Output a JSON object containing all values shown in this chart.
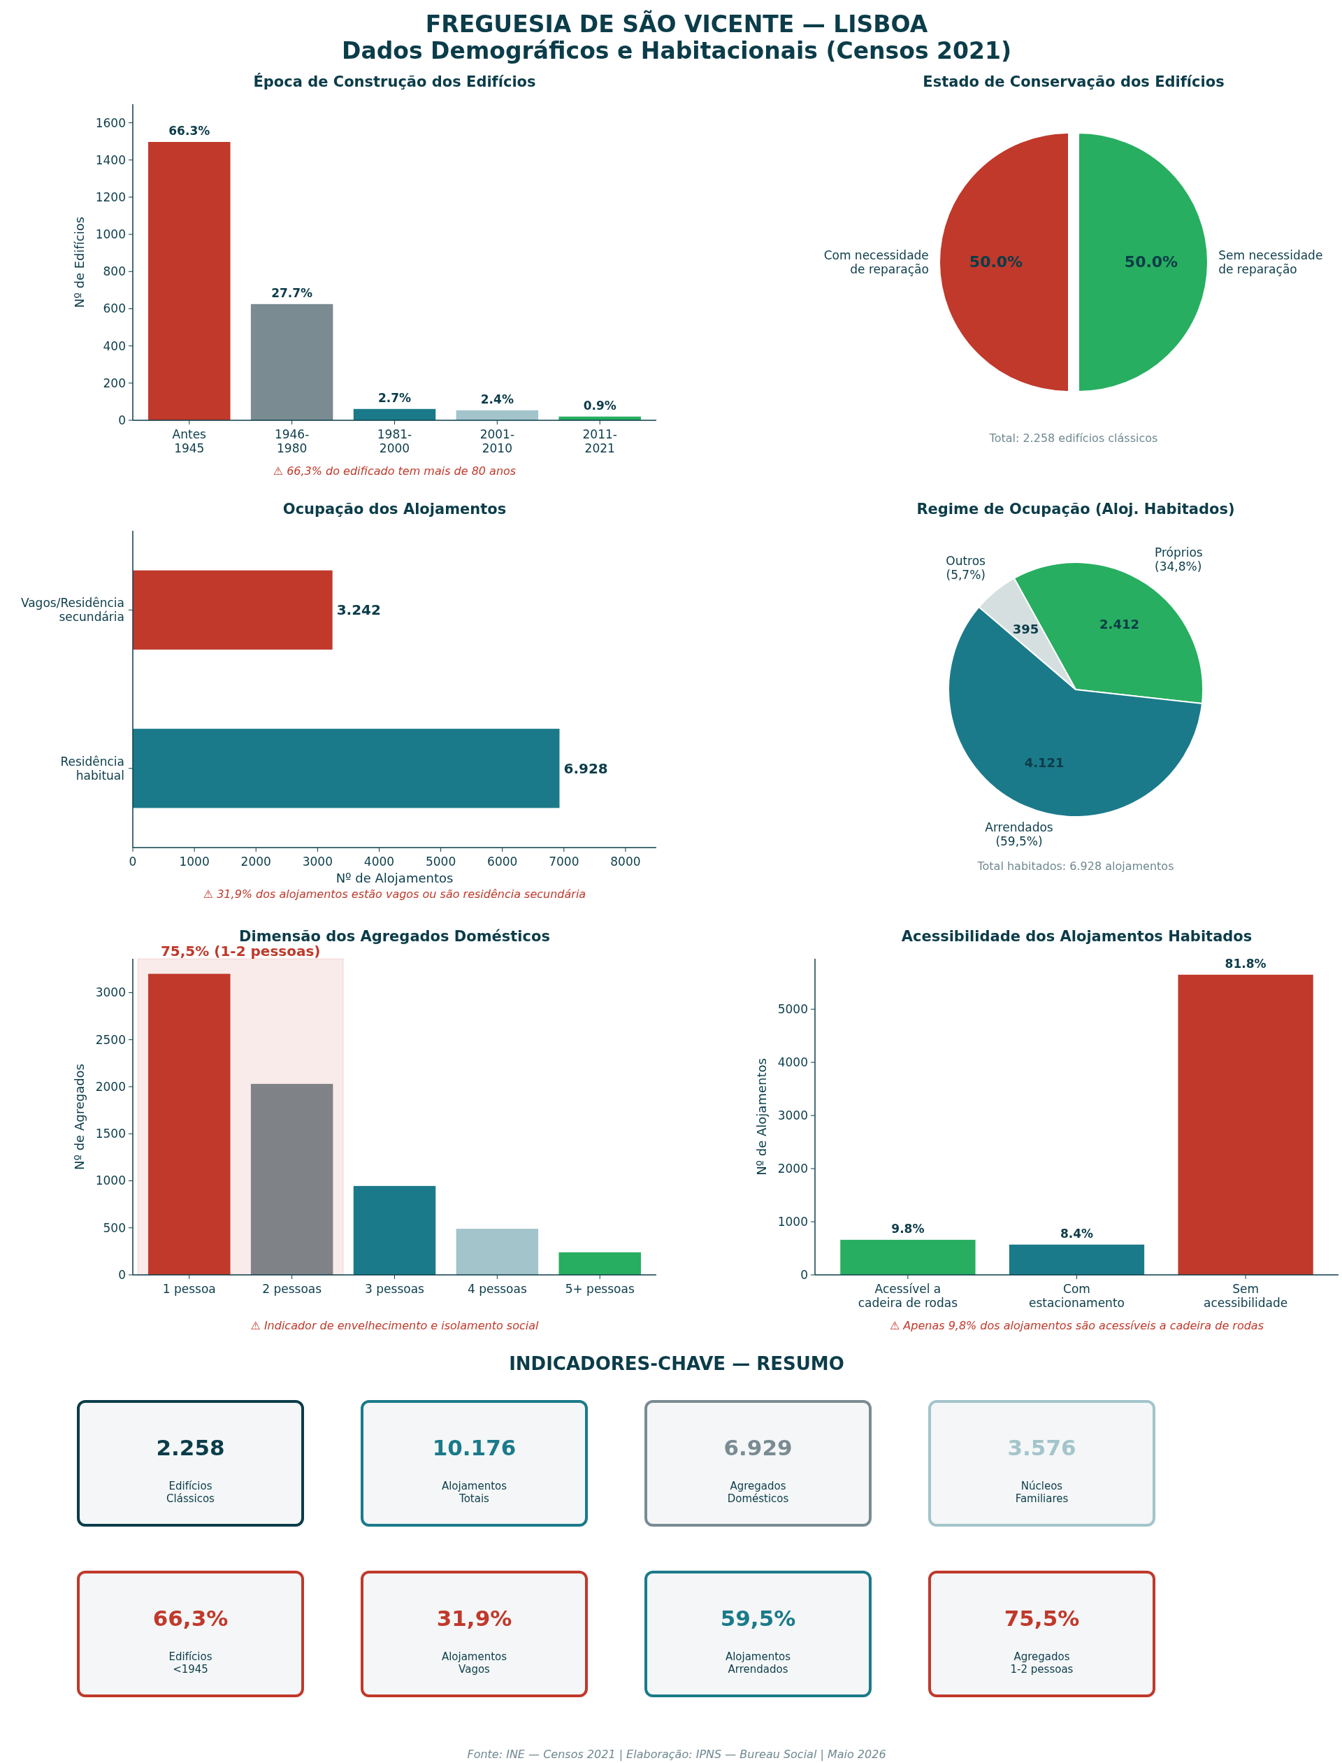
{
  "chart_data": [
    {
      "type": "other",
      "title": "FREGUESIA DE SÃO VICENTE — LISBOA",
      "subtitle": "Dados Demográficos e Habitacionais (Censos 2021)",
      "annotations": [
        "Fonte: INE — Censos 2021 | Elaboração: IPNS — Bureau Social | Maio 2026"
      ]
    },
    {
      "type": "bar",
      "title": "Época de Construção dos Edifícios",
      "ylabel": "Nº de Edifícios",
      "categories": [
        "Antes\n1945",
        "1946-\n1980",
        "1981-\n2000",
        "2001-\n2010",
        "2011-\n2021"
      ],
      "values": [
        1497,
        625,
        61,
        54,
        20
      ],
      "colors": [
        "#c0392b",
        "#7a8b92",
        "#1b7a8a",
        "#a3c4cb",
        "#27ae60"
      ],
      "ylim": [
        0,
        1700
      ],
      "yticks": [
        0,
        200,
        400,
        600,
        800,
        1000,
        1200,
        1400,
        1600
      ],
      "grid": false,
      "annotations": [
        "⚠ 66,3% do edificado tem mais de 80 anos",
        {
          "text": "66.3%",
          "x": "Antes\n1945",
          "y": 1497
        },
        {
          "text": "27.7%",
          "x": "1946-\n1980",
          "y": 625
        },
        {
          "text": "2.7%",
          "x": "1981-\n2000",
          "y": 61
        },
        {
          "text": "2.4%",
          "x": "2001-\n2010",
          "y": 54
        },
        {
          "text": "0.9%",
          "x": "2011-\n2021",
          "y": 20
        }
      ]
    },
    {
      "type": "pie",
      "title": "Estado de Conservação dos Edifícios",
      "categories": [
        "Com necessidade\nde reparação",
        "Sem necessidade\nde reparação"
      ],
      "values": [
        50,
        50
      ],
      "colors": [
        "#c0392b",
        "#27ae60"
      ],
      "value_labels": [
        "50.0%",
        "50.0%"
      ],
      "annotations": [
        "Total: 2.258 edifícios clássicos"
      ]
    },
    {
      "type": "bar",
      "orientation": "horizontal",
      "title": "Ocupação dos Alojamentos",
      "xlabel": "Nº de Alojamentos",
      "categories": [
        "Vagos/Residência\nsecundária",
        "Residência\nhabitual"
      ],
      "values": [
        3242,
        6928
      ],
      "colors": [
        "#c0392b",
        "#1b7a8a"
      ],
      "value_labels": [
        "3.242",
        "6.928"
      ],
      "xlim": [
        0,
        8500
      ],
      "xticks": [
        0,
        1000,
        2000,
        3000,
        4000,
        5000,
        6000,
        7000,
        8000
      ],
      "grid": false,
      "annotations": [
        "⚠ 31,9% dos alojamentos estão vagos ou são residência secundária"
      ]
    },
    {
      "type": "pie",
      "title": "Regime de Ocupação (Aloj. Habitados)",
      "categories": [
        "Próprios\n(34,8%)",
        "Arrendados\n(59,5%)",
        "Outros\n(5,7%)"
      ],
      "values": [
        2412,
        4121,
        395
      ],
      "colors": [
        "#27ae60",
        "#1b7a8a",
        "#d5dfe0"
      ],
      "value_labels": [
        "2.412",
        "4.121",
        "395"
      ],
      "annotations": [
        "Total habitados: 6.928 alojamentos"
      ]
    },
    {
      "type": "bar",
      "title": "Dimensão dos Agregados Domésticos",
      "ylabel": "Nº de Agregados",
      "categories": [
        "1 pessoa",
        "2 pessoas",
        "3 pessoas",
        "4 pessoas",
        "5+ pessoas"
      ],
      "values": [
        3200,
        2030,
        945,
        490,
        240
      ],
      "colors": [
        "#c0392b",
        "#7f8388",
        "#1b7a8a",
        "#a3c4cb",
        "#27ae60"
      ],
      "ylim": [
        0,
        3360
      ],
      "yticks": [
        0,
        500,
        1000,
        1500,
        2000,
        2500,
        3000
      ],
      "grid": false,
      "bands": [
        {
          "axis": "x",
          "from": "1 pessoa",
          "to": "2 pessoas",
          "label": "75,5% (1-2 pessoas)",
          "color": "#c0392b"
        }
      ],
      "annotations": [
        "⚠ Indicador de envelhecimento e isolamento social"
      ]
    },
    {
      "type": "bar",
      "title": "Acessibilidade dos Alojamentos Habitados",
      "ylabel": "Nº de Alojamentos",
      "categories": [
        "Acessível a\ncadeira de rodas",
        "Com\nestacionamento",
        "Sem\nacessibilidade"
      ],
      "values": [
        660,
        570,
        5650
      ],
      "colors": [
        "#27ae60",
        "#1b7a8a",
        "#c0392b"
      ],
      "ylim": [
        0,
        5950
      ],
      "yticks": [
        0,
        1000,
        2000,
        3000,
        4000,
        5000
      ],
      "grid": false,
      "annotations": [
        "⚠ Apenas 9,8% dos alojamentos são acessíveis a cadeira de rodas",
        {
          "text": "9.8%",
          "x": "Acessível a\ncadeira de rodas",
          "y": 660
        },
        {
          "text": "8.4%",
          "x": "Com\nestacionamento",
          "y": 570
        },
        {
          "text": "81.8%",
          "x": "Sem\nacessibilidade",
          "y": 5650
        }
      ]
    },
    {
      "type": "other",
      "title": "INDICADORES-CHAVE — RESUMO",
      "annotations": [
        "2.258",
        "Edifícios\nClássicos",
        "10.176",
        "Alojamentos\nTotais",
        "6.929",
        "Agregados\nDomésticos",
        "3.576",
        "Núcleos\nFamiliares",
        "66,3%",
        "Edifícios\n<1945",
        "31,9%",
        "Alojamentos\nVagos",
        "59,5%",
        "Alojamentos\nArrendados",
        "75,5%",
        "Agregados\n1-2 pessoas"
      ],
      "colors": [
        "#0b3c49",
        "#1b7a8a",
        "#7a8b92",
        "#a3c4cb",
        "#c0392b",
        "#c0392b",
        "#1b7a8a",
        "#c0392b"
      ]
    }
  ]
}
